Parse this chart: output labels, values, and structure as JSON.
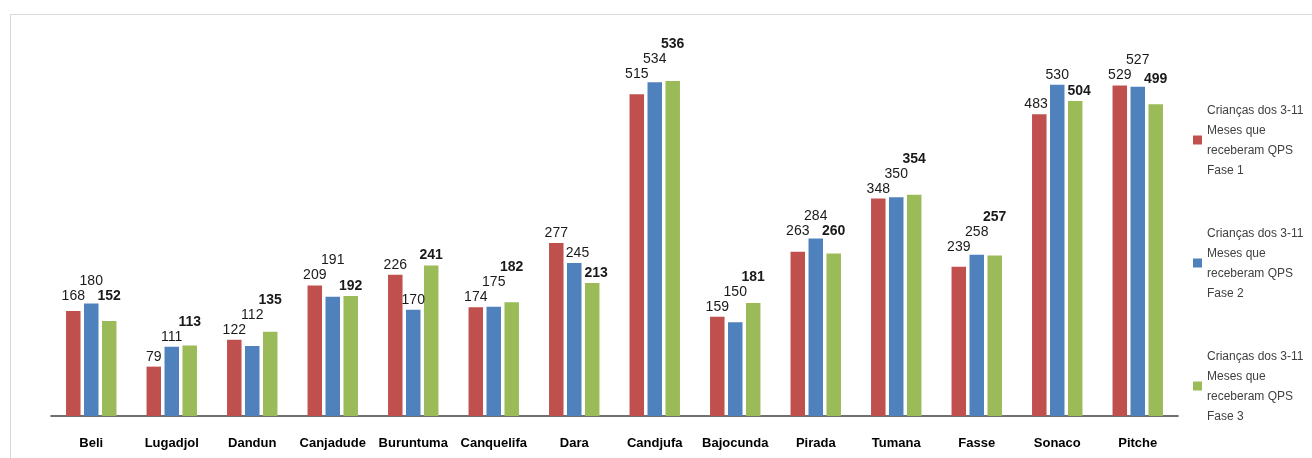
{
  "chart_data": {
    "type": "bar",
    "categories": [
      "Beli",
      "Lugadjol",
      "Dandun",
      "Canjadude",
      "Buruntuma",
      "Canquelifa",
      "Dara",
      "Candjufa",
      "Bajocunda",
      "Pirada",
      "Tumana",
      "Fasse",
      "Sonaco",
      "Pitche"
    ],
    "series": [
      {
        "name": "Crianças dos 3-11 Meses que receberam QPS Fase 1",
        "color": "#c0504d",
        "values": [
          168,
          79,
          122,
          209,
          226,
          174,
          277,
          515,
          159,
          263,
          348,
          239,
          483,
          529
        ]
      },
      {
        "name": "Crianças dos 3-11 Meses que receberam QPS Fase 2",
        "color": "#4f81bd",
        "values": [
          180,
          111,
          112,
          191,
          170,
          175,
          245,
          534,
          150,
          284,
          350,
          258,
          530,
          527
        ]
      },
      {
        "name": "Crianças dos 3-11 Meses que receberam QPS Fase 3",
        "color": "#9bbb59",
        "values": [
          152,
          113,
          135,
          192,
          241,
          182,
          213,
          536,
          181,
          260,
          354,
          257,
          504,
          499
        ]
      }
    ],
    "data_labels": true,
    "legend": "right",
    "tick_labels": "x"
  }
}
